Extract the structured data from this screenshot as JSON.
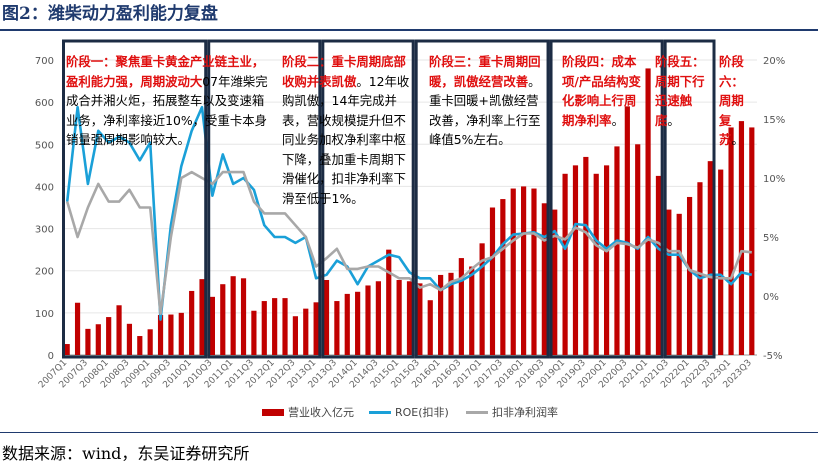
{
  "figure_title": "图2：潍柴动力盈利能力复盘",
  "source": "数据来源：wind，东吴证券研究所",
  "phases": [
    {
      "title": "阶段一：聚焦重卡黄金产业链主业，盈利能力强，周期波动大",
      "body": "07年潍柴完成合并湘火炬，拓展整车以及变速箱业务，净利率接近10%，受重卡本身销量强周期影响较大。"
    },
    {
      "title": "阶段二：重卡周期底部收购并表凯傲",
      "body": "。12年收购凯傲，14年完成并表，营收规模提升但不同业务加权净利率中枢下降，叠加重卡周期下滑催化，扣非净利率下滑至低于1%。"
    },
    {
      "title": "阶段三：重卡周期回暖，凯傲经营改善",
      "body": "。重卡回暖+凯傲经营改善，净利率上行至峰值5%左右。"
    },
    {
      "title": "阶段四：成本项/产品结构变化影响上行周期净利率",
      "body": "。"
    },
    {
      "title": "阶段五：周期下行迅速触底",
      "body": "。"
    },
    {
      "title": "阶段六：周期复苏",
      "body": "。"
    }
  ],
  "chart_data": {
    "type": "bar",
    "categories": [
      "2007Q1",
      "2007Q2",
      "2007Q3",
      "2007Q4",
      "2008Q1",
      "2008Q2",
      "2008Q3",
      "2008Q4",
      "2009Q1",
      "2009Q2",
      "2009Q3",
      "2009Q4",
      "2010Q1",
      "2010Q2",
      "2010Q3",
      "2010Q4",
      "2011Q1",
      "2011Q2",
      "2011Q3",
      "2011Q4",
      "2012Q1",
      "2012Q2",
      "2012Q3",
      "2012Q4",
      "2013Q1",
      "2013Q2",
      "2013Q3",
      "2013Q4",
      "2014Q1",
      "2014Q2",
      "2014Q3",
      "2014Q4",
      "2015Q1",
      "2015Q2",
      "2015Q3",
      "2015Q4",
      "2016Q1",
      "2016Q2",
      "2016Q3",
      "2016Q4",
      "2017Q1",
      "2017Q2",
      "2017Q3",
      "2017Q4",
      "2018Q1",
      "2018Q2",
      "2018Q3",
      "2018Q4",
      "2019Q1",
      "2019Q2",
      "2019Q3",
      "2019Q4",
      "2020Q1",
      "2020Q2",
      "2020Q3",
      "2020Q4",
      "2021Q1",
      "2021Q2",
      "2021Q3",
      "2021Q4",
      "2022Q1",
      "2022Q2",
      "2022Q3",
      "2022Q4",
      "2023Q1",
      "2023Q2",
      "2023Q3"
    ],
    "tick_labels": [
      "2007Q1",
      "2007Q3",
      "2008Q1",
      "2008Q3",
      "2009Q1",
      "2009Q3",
      "2010Q1",
      "2010Q3",
      "2011Q1",
      "2011Q3",
      "2012Q1",
      "2012Q3",
      "2013Q1",
      "2013Q3",
      "2014Q1",
      "2014Q3",
      "2015Q1",
      "2015Q3",
      "2016Q1",
      "2016Q3",
      "2017Q1",
      "2017Q3",
      "2018Q1",
      "2018Q3",
      "2019Q1",
      "2019Q3",
      "2020Q1",
      "2020Q3",
      "2021Q1",
      "2021Q3",
      "2022Q1",
      "2022Q3",
      "2023Q1",
      "2023Q3"
    ],
    "left_axis": {
      "min": 0,
      "max": 700,
      "ticks": [
        0,
        100,
        200,
        300,
        400,
        500,
        600,
        700
      ]
    },
    "right_axis": {
      "min": -5,
      "max": 20,
      "ticks": [
        "-5%",
        "0%",
        "5%",
        "10%",
        "15%",
        "20%"
      ],
      "tick_values": [
        -5,
        0,
        5,
        10,
        15,
        20
      ]
    },
    "series": [
      {
        "name": "营业收入亿元",
        "kind": "bar",
        "axis": "left",
        "color": "#c00000",
        "values": [
          26,
          124,
          62,
          73,
          90,
          118,
          74,
          45,
          61,
          95,
          96,
          100,
          152,
          180,
          138,
          168,
          187,
          182,
          105,
          128,
          135,
          135,
          92,
          110,
          125,
          178,
          128,
          145,
          150,
          165,
          175,
          250,
          178,
          175,
          170,
          130,
          190,
          195,
          230,
          210,
          265,
          350,
          370,
          395,
          400,
          395,
          360,
          345,
          430,
          450,
          470,
          430,
          450,
          495,
          590,
          500,
          680,
          425,
          345,
          335,
          375,
          410,
          460,
          440,
          540,
          555,
          540
        ]
      },
      {
        "name": "ROE(扣非)",
        "kind": "line",
        "axis": "right",
        "color": "#1aa0d8",
        "values": [
          8,
          16,
          9.5,
          14,
          13,
          13.5,
          13,
          11.5,
          13,
          -2,
          6,
          11,
          14,
          16,
          8.5,
          12,
          9.5,
          10,
          9,
          6,
          5,
          5,
          4.5,
          5,
          1.5,
          1.8,
          3,
          2.5,
          1,
          2.5,
          3,
          3.5,
          3.3,
          2,
          1.5,
          1.5,
          0.5,
          1,
          1.3,
          1.8,
          2.5,
          3.3,
          4.4,
          5.2,
          5.3,
          5.4,
          5,
          5.5,
          4,
          6.1,
          6,
          4.7,
          4,
          4.7,
          4.5,
          4,
          5,
          4,
          3.5,
          3.5,
          2.2,
          1.5,
          1.8,
          1.8,
          1,
          2,
          1.8
        ]
      },
      {
        "name": "扣非净利润率",
        "kind": "line",
        "axis": "right",
        "color": "#a8a8a8",
        "values": [
          8,
          5,
          7.5,
          9.5,
          8,
          8,
          9,
          7.5,
          7.5,
          -1.5,
          5,
          10,
          10.5,
          10,
          9.5,
          10.5,
          10.5,
          10.5,
          8,
          7,
          7,
          7,
          6,
          5,
          2.5,
          3.2,
          4,
          2.3,
          2.3,
          2.5,
          2.5,
          2,
          1.5,
          1.5,
          0.7,
          1,
          0.5,
          1.2,
          1.5,
          2.3,
          3,
          3.3,
          4,
          4.7,
          5.3,
          5.3,
          4.7,
          5.1,
          4.8,
          5.8,
          5.4,
          4.3,
          3.8,
          4.5,
          4.4,
          4.1,
          4.8,
          4.5,
          3.8,
          3.8,
          2.2,
          1.9,
          1.6,
          1.5,
          1.5,
          3.8,
          3.7
        ]
      }
    ],
    "phase_boundaries": [
      0,
      14,
      25,
      34,
      47,
      58,
      63
    ],
    "legend_placement": "bottom"
  }
}
